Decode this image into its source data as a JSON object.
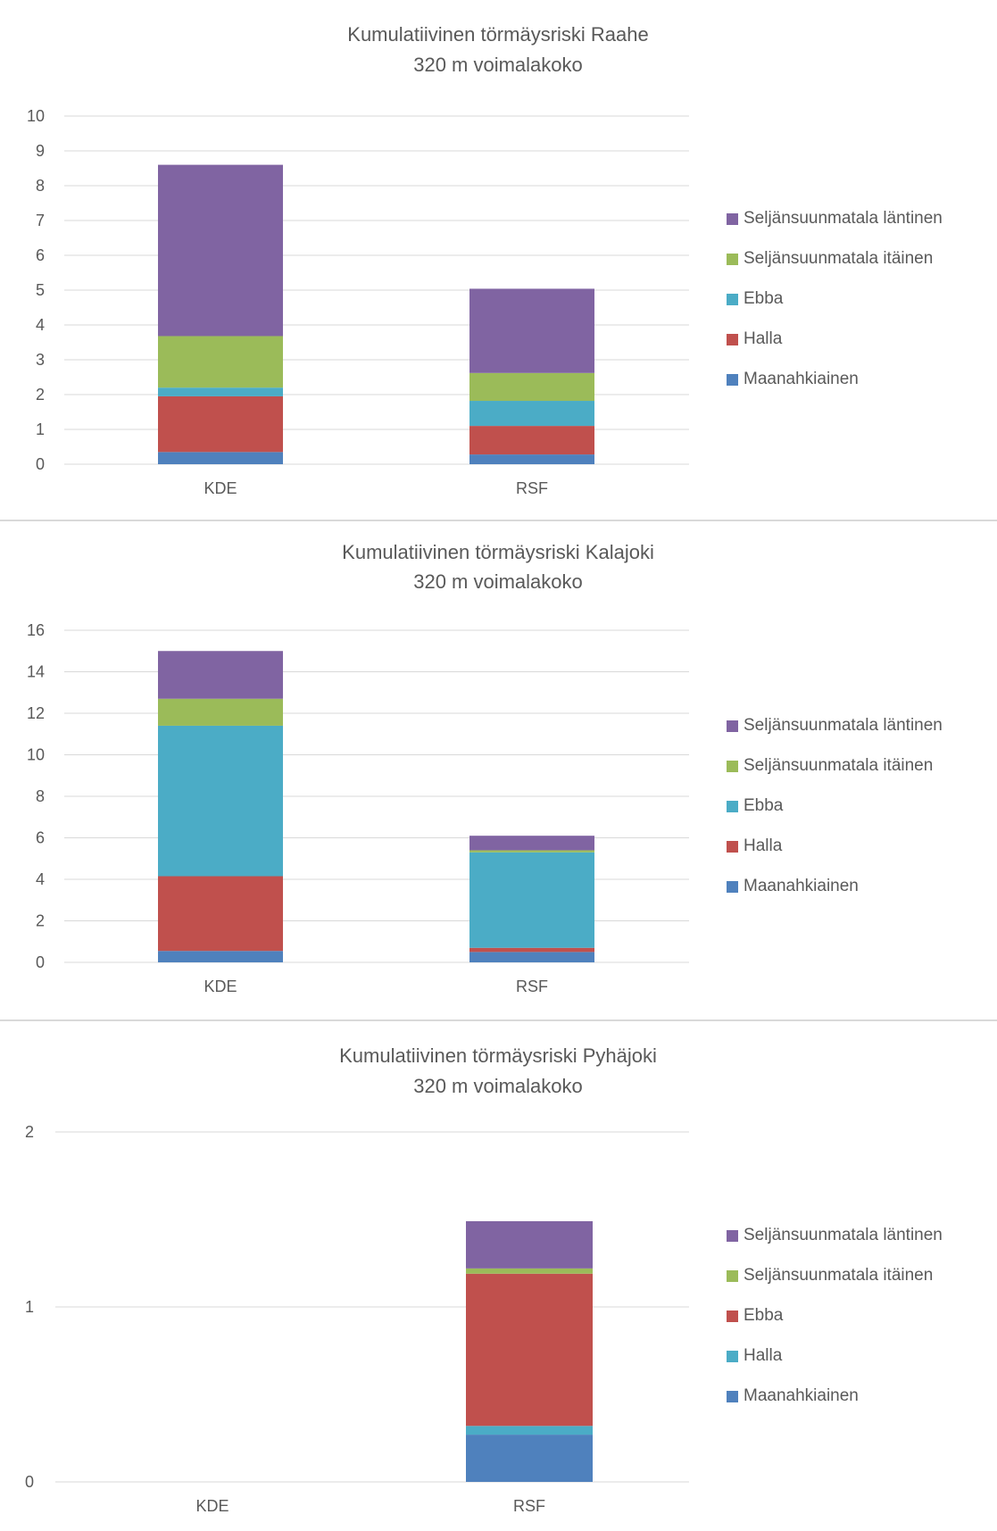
{
  "chart_data": [
    {
      "type": "bar",
      "stacked": true,
      "title": "Kumulatiivinen törmäysriski Raahe",
      "subtitle": "320 m voimalakoko",
      "categories": [
        "KDE",
        "RSF"
      ],
      "ylim": [
        0,
        10
      ],
      "yticks": [
        0,
        1,
        2,
        3,
        4,
        5,
        6,
        7,
        8,
        9,
        10
      ],
      "grid": true,
      "legend_position": "right",
      "series": [
        {
          "name": "Maanahkiainen",
          "color": "#4f81bd",
          "values": [
            0.35,
            0.28
          ]
        },
        {
          "name": "Halla",
          "color": "#c0504d",
          "values": [
            1.6,
            0.82
          ]
        },
        {
          "name": "Ebba",
          "color": "#4bacc6",
          "values": [
            0.25,
            0.72
          ]
        },
        {
          "name": "Seljänsuunmatala itäinen",
          "color": "#9bbb59",
          "values": [
            1.48,
            0.8
          ]
        },
        {
          "name": "Seljänsuunmatala läntinen",
          "color": "#8064a2",
          "values": [
            4.92,
            2.42
          ]
        }
      ]
    },
    {
      "type": "bar",
      "stacked": true,
      "title": "Kumulatiivinen törmäysriski Kalajoki",
      "subtitle": "320 m voimalakoko",
      "categories": [
        "KDE",
        "RSF"
      ],
      "ylim": [
        0,
        16
      ],
      "yticks": [
        0,
        2,
        4,
        6,
        8,
        10,
        12,
        14,
        16
      ],
      "grid": true,
      "legend_position": "right",
      "series": [
        {
          "name": "Maanahkiainen",
          "color": "#4f81bd",
          "values": [
            0.55,
            0.5
          ]
        },
        {
          "name": "Halla",
          "color": "#c0504d",
          "values": [
            3.6,
            0.2
          ]
        },
        {
          "name": "Ebba",
          "color": "#4bacc6",
          "values": [
            7.25,
            4.6
          ]
        },
        {
          "name": "Seljänsuunmatala itäinen",
          "color": "#9bbb59",
          "values": [
            1.3,
            0.1
          ]
        },
        {
          "name": "Seljänsuunmatala läntinen",
          "color": "#8064a2",
          "values": [
            2.3,
            0.7
          ]
        }
      ]
    },
    {
      "type": "bar",
      "stacked": true,
      "title": "Kumulatiivinen törmäysriski Pyhäjoki",
      "subtitle": "320 m voimalakoko",
      "categories": [
        "KDE",
        "RSF"
      ],
      "ylim": [
        0,
        2
      ],
      "yticks": [
        0,
        1,
        2
      ],
      "grid": true,
      "legend_position": "right",
      "series": [
        {
          "name": "Maanahkiainen",
          "color": "#4f81bd",
          "values": [
            0,
            0.27
          ]
        },
        {
          "name": "Halla",
          "color": "#4bacc6",
          "values": [
            0,
            0.05
          ]
        },
        {
          "name": "Ebba",
          "color": "#c0504d",
          "values": [
            0,
            0.87
          ]
        },
        {
          "name": "Seljänsuunmatala itäinen",
          "color": "#9bbb59",
          "values": [
            0,
            0.03
          ]
        },
        {
          "name": "Seljänsuunmatala läntinen",
          "color": "#8064a2",
          "values": [
            0,
            0.27
          ]
        }
      ]
    }
  ]
}
